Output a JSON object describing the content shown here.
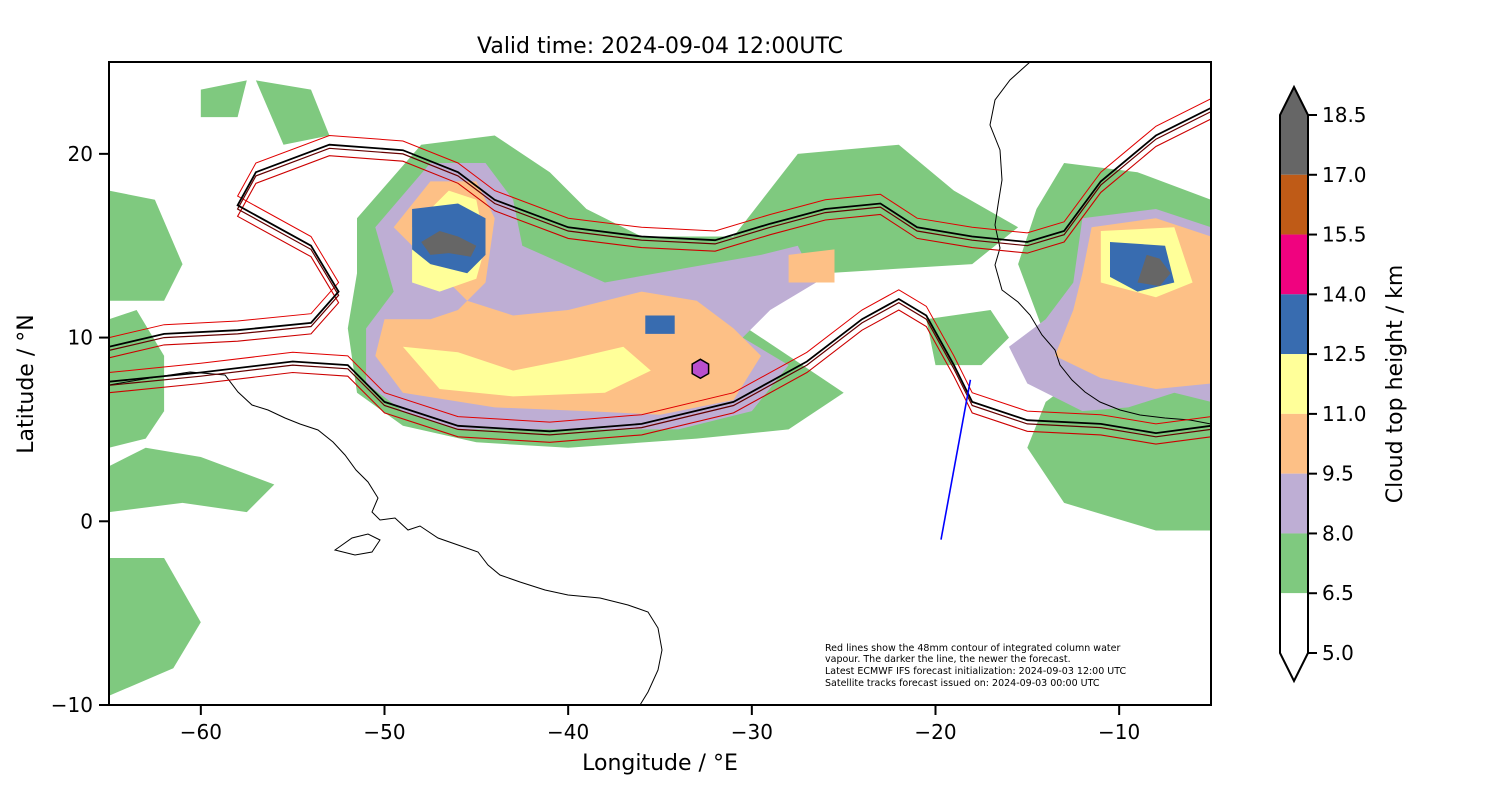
{
  "title": "Valid time: 2024-09-04 12:00UTC",
  "x_axis": {
    "label": "Longitude / °E",
    "range": [
      -65,
      -5
    ],
    "ticks": [
      {
        "value": -60,
        "label": "−60"
      },
      {
        "value": -50,
        "label": "−50"
      },
      {
        "value": -40,
        "label": "−40"
      },
      {
        "value": -30,
        "label": "−30"
      },
      {
        "value": -20,
        "label": "−20"
      },
      {
        "value": -10,
        "label": "−10"
      }
    ]
  },
  "y_axis": {
    "label": "Latitude / °N",
    "range": [
      -10,
      25
    ],
    "ticks": [
      {
        "value": -10,
        "label": "−10"
      },
      {
        "value": 0,
        "label": "0"
      },
      {
        "value": 10,
        "label": "10"
      },
      {
        "value": 20,
        "label": "20"
      }
    ]
  },
  "colorbar": {
    "label": "Cloud top height / km",
    "levels": [
      {
        "value": 18.5,
        "label": "18.5"
      },
      {
        "value": 17.0,
        "label": "17.0"
      },
      {
        "value": 15.5,
        "label": "15.5"
      },
      {
        "value": 14.0,
        "label": "14.0"
      },
      {
        "value": 12.5,
        "label": "12.5"
      },
      {
        "value": 11.0,
        "label": "11.0"
      },
      {
        "value": 9.5,
        "label": "9.5"
      },
      {
        "value": 8.0,
        "label": "8.0"
      },
      {
        "value": 6.5,
        "label": "6.5"
      },
      {
        "value": 5.0,
        "label": "5.0"
      }
    ],
    "bins": [
      {
        "from": 17.0,
        "to": 18.5,
        "color": "#666666"
      },
      {
        "from": 15.5,
        "to": 17.0,
        "color": "#bf5b17"
      },
      {
        "from": 14.0,
        "to": 15.5,
        "color": "#f0027f"
      },
      {
        "from": 12.5,
        "to": 14.0,
        "color": "#386cb0"
      },
      {
        "from": 11.0,
        "to": 12.5,
        "color": "#ffff99"
      },
      {
        "from": 9.5,
        "to": 11.0,
        "color": "#fdc086"
      },
      {
        "from": 8.0,
        "to": 9.5,
        "color": "#beaed4"
      },
      {
        "from": 6.5,
        "to": 8.0,
        "color": "#7fc97f"
      },
      {
        "from": 5.0,
        "to": 6.5,
        "color": "#ffffff"
      }
    ],
    "extend": "both"
  },
  "annotation": [
    "Red lines show the 48mm contour of integrated column water",
    "vapour. The darker the line, the newer the forecast.",
    "Latest ECMWF IFS forecast initialization: 2024-09-03 12:00 UTC",
    "Satellite tracks forecast issued on: 2024-09-03 00:00 UTC"
  ],
  "satellite_track": {
    "color": "#0000ff",
    "start": {
      "lon": -19.7,
      "lat": -1.0
    },
    "end": {
      "lon": -18.1,
      "lat": 7.7
    }
  },
  "marker": {
    "shape": "hexagon",
    "color": "#b94fce",
    "lon": -32.8,
    "lat": 8.3
  },
  "chart_data": {
    "type": "heatmap",
    "title": "Valid time: 2024-09-04 12:00UTC",
    "xlabel": "Longitude / °E",
    "ylabel": "Latitude / °N",
    "xlim": [
      -65,
      -5
    ],
    "ylim": [
      -10,
      25
    ],
    "colorbar_label": "Cloud top height / km",
    "cloud_regions": [
      {
        "name_level": "6.5-8.0",
        "color": "#7fc97f",
        "polygons": [
          [
            [
              -51.5,
              16.5
            ],
            [
              -48,
              20.5
            ],
            [
              -44,
              21
            ],
            [
              -41,
              19
            ],
            [
              -39,
              17
            ],
            [
              -36,
              15.5
            ],
            [
              -31,
              15.5
            ],
            [
              -27.5,
              20
            ],
            [
              -22,
              20.5
            ],
            [
              -19,
              18
            ],
            [
              -15.5,
              16
            ],
            [
              -18,
              14
            ],
            [
              -26,
              13.5
            ],
            [
              -29,
              12
            ],
            [
              -31,
              11
            ],
            [
              -28,
              9
            ],
            [
              -25,
              7
            ],
            [
              -28,
              5
            ],
            [
              -33,
              4.5
            ],
            [
              -40,
              4
            ],
            [
              -45,
              4.3
            ],
            [
              -49,
              5.2
            ],
            [
              -51.5,
              7
            ],
            [
              -52,
              10.5
            ],
            [
              -51.5,
              13.5
            ]
          ],
          [
            [
              -20.5,
              11
            ],
            [
              -17,
              11.5
            ],
            [
              -16,
              10
            ],
            [
              -17.5,
              8.5
            ],
            [
              -20,
              8.5
            ]
          ],
          [
            [
              -13,
              19.5
            ],
            [
              -9,
              19
            ],
            [
              -5,
              17.5
            ],
            [
              -5,
              -0.5
            ],
            [
              -8,
              -0.5
            ],
            [
              -13,
              1
            ],
            [
              -15,
              4
            ],
            [
              -14,
              6.5
            ],
            [
              -12,
              8
            ],
            [
              -14,
              10
            ],
            [
              -15.5,
              14
            ],
            [
              -14.5,
              17
            ]
          ],
          [
            [
              -65,
              11
            ],
            [
              -63.5,
              11.5
            ],
            [
              -62,
              9
            ],
            [
              -62,
              6
            ],
            [
              -63,
              4.5
            ],
            [
              -65,
              4
            ]
          ],
          [
            [
              -65,
              3
            ],
            [
              -63,
              4
            ],
            [
              -60,
              3.5
            ],
            [
              -56,
              2
            ],
            [
              -57.5,
              0.5
            ],
            [
              -61,
              1
            ],
            [
              -65,
              0.5
            ]
          ],
          [
            [
              -65,
              -2
            ],
            [
              -62,
              -2
            ],
            [
              -60,
              -5.5
            ],
            [
              -61.5,
              -8
            ],
            [
              -65,
              -9.5
            ]
          ],
          [
            [
              -65,
              18
            ],
            [
              -62.5,
              17.5
            ],
            [
              -61,
              14
            ],
            [
              -62,
              12
            ],
            [
              -65,
              12
            ]
          ],
          [
            [
              -57,
              24
            ],
            [
              -54,
              23.5
            ],
            [
              -53,
              21
            ],
            [
              -55.5,
              20.5
            ]
          ],
          [
            [
              -60,
              23.5
            ],
            [
              -57.5,
              24
            ],
            [
              -58,
              22
            ],
            [
              -60,
              22
            ]
          ]
        ]
      },
      {
        "name_level": "8.0-9.5",
        "color": "#beaed4",
        "polygons": [
          [
            [
              -50.5,
              16
            ],
            [
              -47.5,
              19.5
            ],
            [
              -44.5,
              19.5
            ],
            [
              -43,
              17.5
            ],
            [
              -42.5,
              15
            ],
            [
              -38,
              13
            ],
            [
              -33.5,
              13.8
            ],
            [
              -29.5,
              14.5
            ],
            [
              -27.5,
              15
            ],
            [
              -26.5,
              13
            ],
            [
              -29,
              11.5
            ],
            [
              -30.5,
              10
            ],
            [
              -28,
              8.5
            ],
            [
              -30,
              6
            ],
            [
              -34,
              5
            ],
            [
              -40,
              5
            ],
            [
              -46,
              5
            ],
            [
              -49,
              6
            ],
            [
              -51,
              7.5
            ],
            [
              -51,
              10.5
            ],
            [
              -49.5,
              12.5
            ]
          ],
          [
            [
              -12,
              16.5
            ],
            [
              -8,
              17
            ],
            [
              -5,
              16
            ],
            [
              -5,
              6.5
            ],
            [
              -7,
              7
            ],
            [
              -9.5,
              6.2
            ],
            [
              -12,
              6
            ],
            [
              -15,
              7.5
            ],
            [
              -16,
              9.5
            ],
            [
              -14,
              11
            ],
            [
              -12.5,
              13
            ]
          ]
        ]
      },
      {
        "name_level": "9.5-11.0",
        "color": "#fdc086",
        "polygons": [
          [
            [
              -49.5,
              16
            ],
            [
              -47.5,
              18.5
            ],
            [
              -45,
              18.5
            ],
            [
              -44,
              16.5
            ],
            [
              -44.5,
              13
            ],
            [
              -46,
              11.5
            ],
            [
              -47.5,
              11
            ],
            [
              -50,
              11
            ],
            [
              -50.5,
              9
            ],
            [
              -49,
              7
            ],
            [
              -44,
              6.2
            ],
            [
              -39,
              6
            ],
            [
              -35,
              5.8
            ],
            [
              -31,
              6.6
            ],
            [
              -29.5,
              9
            ],
            [
              -31,
              10.5
            ],
            [
              -33,
              12
            ],
            [
              -36,
              12.5
            ],
            [
              -40,
              11.5
            ],
            [
              -43,
              11.2
            ],
            [
              -45.5,
              12
            ]
          ],
          [
            [
              -11.5,
              16
            ],
            [
              -8,
              16.5
            ],
            [
              -5,
              15.5
            ],
            [
              -5,
              7.5
            ],
            [
              -8,
              7.2
            ],
            [
              -11,
              7.8
            ],
            [
              -13.5,
              9
            ],
            [
              -12.5,
              11.5
            ],
            [
              -12,
              13.5
            ]
          ],
          [
            [
              -28,
              14.5
            ],
            [
              -25.5,
              14.8
            ],
            [
              -25.5,
              13
            ],
            [
              -28,
              13
            ]
          ]
        ]
      },
      {
        "name_level": "11.0-12.5",
        "color": "#ffff99",
        "polygons": [
          [
            [
              -48.5,
              16
            ],
            [
              -46.5,
              18
            ],
            [
              -45,
              17.5
            ],
            [
              -44.5,
              15
            ],
            [
              -45,
              13.2
            ],
            [
              -47,
              12.5
            ],
            [
              -48.5,
              13
            ]
          ],
          [
            [
              -49,
              9.5
            ],
            [
              -46,
              9.2
            ],
            [
              -43,
              8.2
            ],
            [
              -40,
              8.8
            ],
            [
              -37,
              9.5
            ],
            [
              -35.5,
              8.2
            ],
            [
              -38,
              7
            ],
            [
              -43,
              6.8
            ],
            [
              -47,
              7.2
            ]
          ],
          [
            [
              -11,
              15.8
            ],
            [
              -7,
              16
            ],
            [
              -6,
              13
            ],
            [
              -8,
              12.2
            ],
            [
              -11,
              13
            ]
          ]
        ]
      },
      {
        "name_level": "12.5-14.0",
        "color": "#386cb0",
        "polygons": [
          [
            [
              -48.5,
              17
            ],
            [
              -46,
              17.3
            ],
            [
              -44.5,
              16.5
            ],
            [
              -44.5,
              14.5
            ],
            [
              -45.5,
              13.5
            ],
            [
              -47.5,
              14
            ],
            [
              -48.5,
              14.8
            ]
          ],
          [
            [
              -35.8,
              11.2
            ],
            [
              -34.2,
              11.2
            ],
            [
              -34.2,
              10.2
            ],
            [
              -35.8,
              10.2
            ]
          ],
          [
            [
              -10.5,
              15.2
            ],
            [
              -7.5,
              15
            ],
            [
              -7,
              13
            ],
            [
              -9,
              12.5
            ],
            [
              -10.5,
              13.3
            ]
          ]
        ]
      },
      {
        "name_level": "17.0-18.5",
        "color": "#666666",
        "polygons": [
          [
            [
              -48,
              15.2
            ],
            [
              -47,
              15.8
            ],
            [
              -46,
              15.5
            ],
            [
              -45,
              15
            ],
            [
              -45.3,
              14.4
            ],
            [
              -46.5,
              14.6
            ],
            [
              -47.5,
              14.5
            ]
          ],
          [
            [
              -8.5,
              14.5
            ],
            [
              -7.8,
              14.3
            ],
            [
              -7.2,
              13.5
            ],
            [
              -7.8,
              12.8
            ],
            [
              -9,
              13
            ]
          ]
        ]
      }
    ],
    "contours_48mm_tcwv": [
      {
        "role": "newest",
        "color": "#000000",
        "points": [
          [
            -65,
            9.5
          ],
          [
            -62,
            10.2
          ],
          [
            -58,
            10.4
          ],
          [
            -54,
            10.8
          ],
          [
            -52.5,
            12.5
          ],
          [
            -54,
            15
          ],
          [
            -58,
            17.2
          ],
          [
            -57,
            19
          ],
          [
            -53,
            20.5
          ],
          [
            -49,
            20.2
          ],
          [
            -46,
            19
          ],
          [
            -44,
            17.5
          ],
          [
            -40,
            16
          ],
          [
            -36,
            15.5
          ],
          [
            -32,
            15.3
          ],
          [
            -29,
            16.2
          ],
          [
            -26,
            17
          ],
          [
            -23,
            17.3
          ],
          [
            -21,
            16
          ],
          [
            -18,
            15.5
          ],
          [
            -15,
            15.2
          ],
          [
            -13,
            15.8
          ],
          [
            -11,
            18.5
          ],
          [
            -8,
            21
          ],
          [
            -5,
            22.5
          ]
        ]
      },
      {
        "role": "newest",
        "color": "#000000",
        "points": [
          [
            -65,
            7.6
          ],
          [
            -60,
            8.1
          ],
          [
            -55,
            8.7
          ],
          [
            -52,
            8.5
          ],
          [
            -50,
            6.5
          ],
          [
            -46,
            5.2
          ],
          [
            -41,
            4.9
          ],
          [
            -36,
            5.3
          ],
          [
            -31,
            6.5
          ],
          [
            -27,
            8.7
          ],
          [
            -24,
            11
          ],
          [
            -22,
            12.1
          ],
          [
            -20.5,
            11.2
          ],
          [
            -19,
            8.5
          ],
          [
            -18,
            6.5
          ],
          [
            -15,
            5.5
          ],
          [
            -11,
            5.3
          ],
          [
            -8,
            4.8
          ],
          [
            -5,
            5.2
          ]
        ]
      }
    ],
    "satellite_track": {
      "start": [
        -19.7,
        -1.0
      ],
      "end": [
        -18.1,
        7.7
      ]
    },
    "marker": {
      "lon": -32.8,
      "lat": 8.3
    }
  }
}
